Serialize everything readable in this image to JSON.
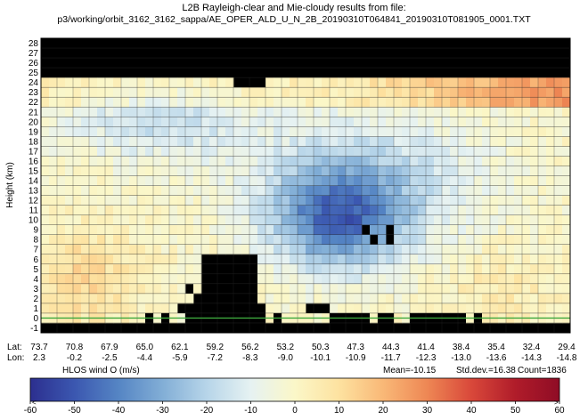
{
  "chart_data": {
    "type": "heatmap",
    "title": "L2B Rayleigh-clear and Mie-cloudy results from file:",
    "subtitle": "p3/working/orbit_3162_3162_sappa/AE_OPER_ALD_U_N_2B_20190310T064841_20190310T081905_0001.TXT",
    "ylabel": "Height (km)",
    "ylim": [
      -1,
      28
    ],
    "y_ticks": [
      "-1",
      "0",
      "1",
      "2",
      "3",
      "4",
      "5",
      "6",
      "7",
      "8",
      "9",
      "10",
      "11",
      "12",
      "13",
      "14",
      "15",
      "16",
      "17",
      "18",
      "19",
      "20",
      "21",
      "22",
      "23",
      "24",
      "25",
      "26",
      "27",
      "28"
    ],
    "x_row_labels": [
      "Lat:",
      "Lon:"
    ],
    "lat_ticks": [
      "73.7",
      "70.8",
      "67.9",
      "65.0",
      "62.1",
      "59.2",
      "56.2",
      "53.2",
      "50.3",
      "47.3",
      "44.3",
      "41.4",
      "38.4",
      "35.4",
      "32.4",
      "29.4"
    ],
    "lon_ticks": [
      "2.3",
      "-0.2",
      "-2.5",
      "-4.4",
      "-5.9",
      "-7.2",
      "-8.3",
      "-9.0",
      "-10.1",
      "-10.9",
      "-11.7",
      "-12.3",
      "-13.0",
      "-13.6",
      "-14.3",
      "-14.8"
    ],
    "colorbar": {
      "label": "HLOS wind O (m/s)",
      "min": -60,
      "max": 60,
      "ticks": [
        "-60",
        "-50",
        "-40",
        "-30",
        "-20",
        "-10",
        "0",
        "10",
        "20",
        "30",
        "40",
        "50",
        "60"
      ],
      "colors": [
        "#2c2f8f",
        "#3b57b0",
        "#5585c4",
        "#82aed6",
        "#b7d5e9",
        "#e6f2f2",
        "#fbf7c8",
        "#fde2a0",
        "#f9b877",
        "#ee8754",
        "#d9483a",
        "#b01c2a",
        "#8f0c25"
      ]
    },
    "stats": {
      "mean": "Mean=-10.15",
      "std": "Std.dev.=16.38",
      "count": "Count=1836"
    },
    "colors": {
      "no_data": "#000000",
      "ground_line": "#3da83d",
      "grid": "#2a2a2a"
    }
  }
}
